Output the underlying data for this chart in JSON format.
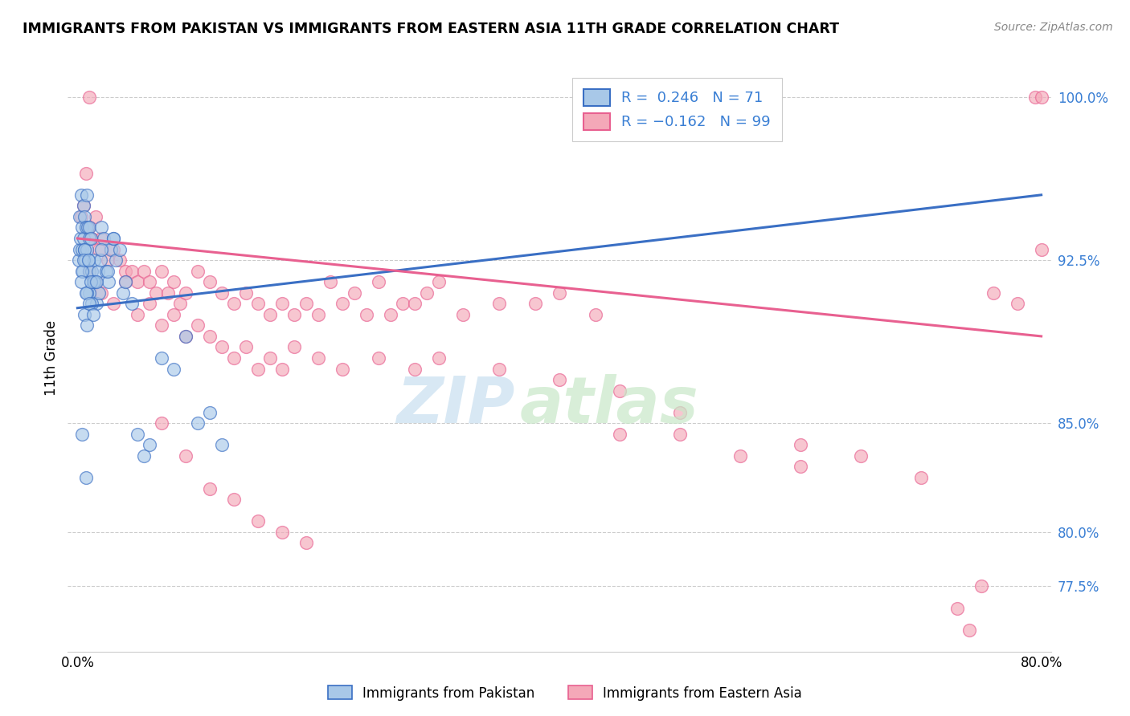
{
  "title": "IMMIGRANTS FROM PAKISTAN VS IMMIGRANTS FROM EASTERN ASIA 11TH GRADE CORRELATION CHART",
  "source": "Source: ZipAtlas.com",
  "ylabel": "11th Grade",
  "xlim": [
    0.0,
    80.0
  ],
  "ylim": [
    74.5,
    101.5
  ],
  "R_pakistan": 0.246,
  "N_pakistan": 71,
  "R_eastern_asia": -0.162,
  "N_eastern_asia": 99,
  "color_pakistan": "#a8c8e8",
  "color_eastern_asia": "#f4a8b8",
  "color_pakistan_line": "#3a6fc4",
  "color_eastern_asia_line": "#e86090",
  "ytick_vals": [
    77.5,
    80.0,
    85.0,
    92.5,
    100.0
  ],
  "pk_line_x0": 0,
  "pk_line_y0": 90.3,
  "pk_line_x1": 80,
  "pk_line_y1": 95.5,
  "ea_line_x0": 0,
  "ea_line_y0": 93.5,
  "ea_line_x1": 80,
  "ea_line_y1": 89.0,
  "pk_x": [
    0.1,
    0.15,
    0.2,
    0.25,
    0.3,
    0.35,
    0.4,
    0.45,
    0.5,
    0.5,
    0.55,
    0.6,
    0.65,
    0.7,
    0.75,
    0.8,
    0.85,
    0.9,
    0.95,
    1.0,
    1.0,
    1.1,
    1.2,
    1.3,
    1.4,
    1.5,
    1.6,
    1.7,
    1.8,
    1.9,
    2.0,
    2.2,
    2.4,
    2.6,
    2.8,
    3.0,
    3.2,
    3.5,
    3.8,
    4.0,
    4.5,
    5.0,
    5.5,
    6.0,
    7.0,
    8.0,
    9.0,
    10.0,
    11.0,
    12.0,
    1.0,
    1.2,
    1.4,
    0.8,
    0.6,
    0.4,
    0.3,
    0.5,
    0.7,
    0.9,
    1.1,
    0.6,
    0.8,
    1.0,
    1.3,
    1.6,
    2.0,
    2.5,
    3.0,
    0.4,
    0.7
  ],
  "pk_y": [
    92.5,
    93.0,
    94.5,
    93.5,
    95.5,
    94.0,
    93.0,
    92.0,
    95.0,
    93.5,
    94.5,
    93.0,
    92.5,
    94.0,
    93.0,
    95.5,
    94.0,
    92.5,
    93.5,
    94.0,
    92.0,
    93.5,
    92.0,
    91.5,
    92.5,
    91.5,
    90.5,
    92.0,
    91.0,
    92.5,
    94.0,
    93.5,
    92.0,
    91.5,
    93.0,
    93.5,
    92.5,
    93.0,
    91.0,
    91.5,
    90.5,
    84.5,
    83.5,
    84.0,
    88.0,
    87.5,
    89.0,
    85.0,
    85.5,
    84.0,
    91.0,
    90.5,
    91.5,
    91.0,
    93.0,
    92.0,
    91.5,
    92.5,
    91.0,
    92.5,
    91.5,
    90.0,
    89.5,
    90.5,
    90.0,
    91.5,
    93.0,
    92.0,
    93.5,
    84.5,
    82.5
  ],
  "ea_x": [
    0.3,
    0.5,
    0.7,
    0.9,
    1.0,
    1.2,
    1.5,
    1.8,
    2.0,
    2.5,
    3.0,
    3.5,
    4.0,
    4.5,
    5.0,
    5.5,
    6.0,
    6.5,
    7.0,
    7.5,
    8.0,
    8.5,
    9.0,
    10.0,
    11.0,
    12.0,
    13.0,
    14.0,
    15.0,
    16.0,
    17.0,
    18.0,
    19.0,
    20.0,
    21.0,
    22.0,
    23.0,
    24.0,
    25.0,
    26.0,
    27.0,
    28.0,
    29.0,
    30.0,
    32.0,
    35.0,
    38.0,
    40.0,
    43.0,
    45.0,
    50.0,
    55.0,
    60.0,
    65.0,
    1.0,
    1.5,
    2.0,
    3.0,
    4.0,
    5.0,
    6.0,
    7.0,
    8.0,
    9.0,
    10.0,
    11.0,
    12.0,
    13.0,
    14.0,
    15.0,
    16.0,
    17.0,
    18.0,
    20.0,
    22.0,
    25.0,
    28.0,
    30.0,
    35.0,
    40.0,
    45.0,
    50.0,
    60.0,
    70.0,
    73.0,
    74.0,
    75.0,
    76.0,
    78.0,
    79.5,
    80.0,
    80.0,
    7.0,
    9.0,
    11.0,
    13.0,
    15.0,
    17.0,
    19.0
  ],
  "ea_y": [
    94.5,
    95.0,
    96.5,
    94.0,
    100.0,
    93.5,
    94.5,
    93.0,
    93.5,
    92.5,
    93.0,
    92.5,
    92.0,
    92.0,
    91.5,
    92.0,
    91.5,
    91.0,
    92.0,
    91.0,
    91.5,
    90.5,
    91.0,
    92.0,
    91.5,
    91.0,
    90.5,
    91.0,
    90.5,
    90.0,
    90.5,
    90.0,
    90.5,
    90.0,
    91.5,
    90.5,
    91.0,
    90.0,
    91.5,
    90.0,
    90.5,
    90.5,
    91.0,
    91.5,
    90.0,
    90.5,
    90.5,
    91.0,
    90.0,
    84.5,
    84.5,
    83.5,
    83.0,
    83.5,
    92.0,
    91.5,
    91.0,
    90.5,
    91.5,
    90.0,
    90.5,
    89.5,
    90.0,
    89.0,
    89.5,
    89.0,
    88.5,
    88.0,
    88.5,
    87.5,
    88.0,
    87.5,
    88.5,
    88.0,
    87.5,
    88.0,
    87.5,
    88.0,
    87.5,
    87.0,
    86.5,
    85.5,
    84.0,
    82.5,
    76.5,
    75.5,
    77.5,
    91.0,
    90.5,
    100.0,
    100.0,
    93.0,
    85.0,
    83.5,
    82.0,
    81.5,
    80.5,
    80.0,
    79.5
  ]
}
